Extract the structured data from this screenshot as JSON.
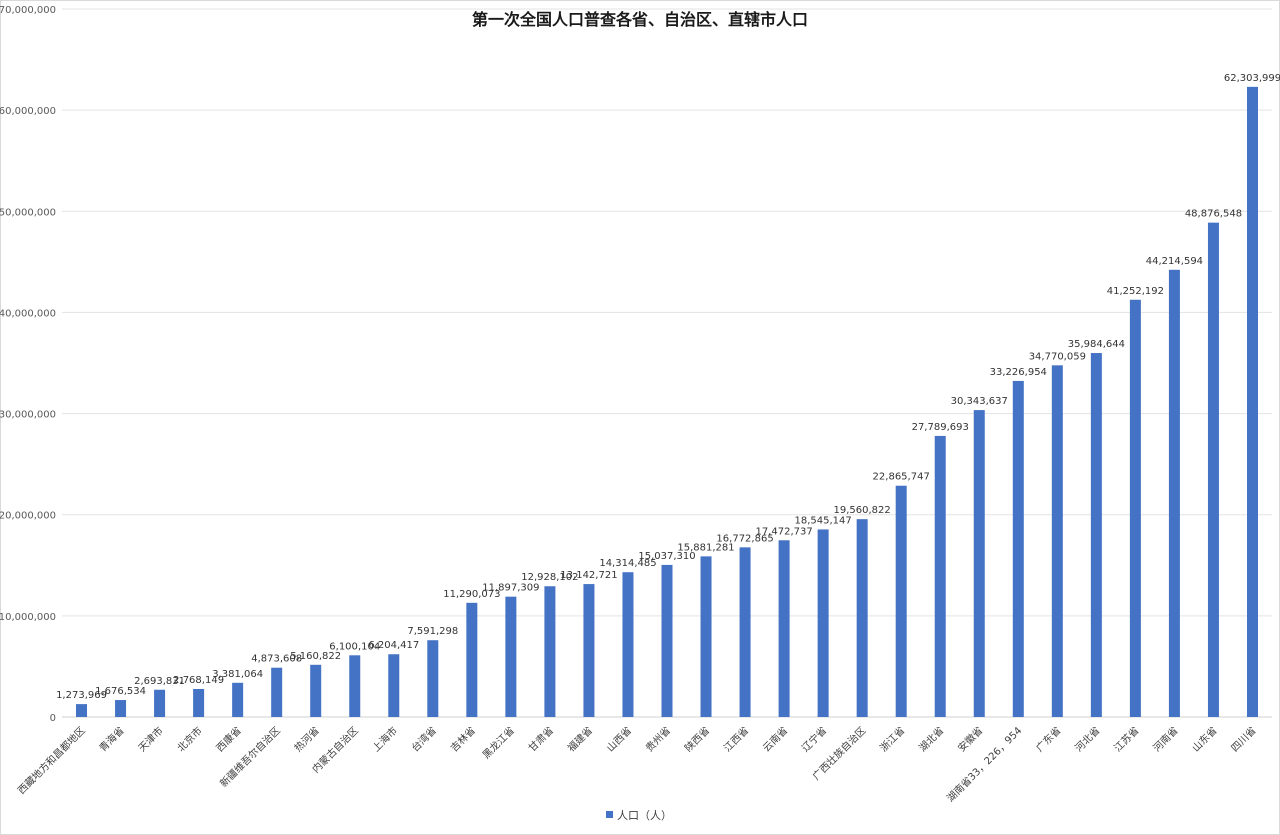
{
  "chart_data": {
    "type": "bar",
    "title": "第一次全国人口普查各省、自治区、直辖市人口",
    "xlabel": "",
    "ylabel": "",
    "ylim": [
      0,
      70000000
    ],
    "yticks": [
      "0",
      "10,000,000",
      "20,000,000",
      "30,000,000",
      "40,000,000",
      "50,000,000",
      "60,000,000",
      "70,000,000"
    ],
    "legend": {
      "position": "bottom",
      "label": "人口（人）"
    },
    "bar_color": "#4472c4",
    "categories": [
      "西藏地方和昌都地区",
      "青海省",
      "天津市",
      "北京市",
      "西康省",
      "新疆维吾尔自治区",
      "热河省",
      "内蒙古自治区",
      "上海市",
      "台湾省",
      "吉林省",
      "黑龙江省",
      "甘肃省",
      "福建省",
      "山西省",
      "贵州省",
      "陕西省",
      "江西省",
      "云南省",
      "辽宁省",
      "广西壮族自治区",
      "浙江省",
      "湖北省",
      "安徽省",
      "湖南省33，226，954",
      "广东省",
      "河北省",
      "江苏省",
      "河南省",
      "山东省",
      "四川省"
    ],
    "values": [
      1273969,
      1676534,
      2693831,
      2768149,
      3381064,
      4873608,
      5160822,
      6100104,
      6204417,
      7591298,
      11290073,
      11897309,
      12928102,
      13142721,
      14314485,
      15037310,
      15881281,
      16772865,
      17472737,
      18545147,
      19560822,
      22865747,
      27789693,
      30343637,
      33226954,
      34770059,
      35984644,
      41252192,
      44214594,
      48876548,
      62303999
    ],
    "data_labels": [
      "1,273,969",
      "1,676,534",
      "2,693,831",
      "2,768,149",
      "3,381,064",
      "4,873,608",
      "5,160,822",
      "6,100,104",
      "6,204,417",
      "7,591,298",
      "11,290,073",
      "11,897,309",
      "12,928,102",
      "13,142,721",
      "14,314,485",
      "15,037,310",
      "15,881,281",
      "16,772,865",
      "17,472,737",
      "18,545,147",
      "19,560,822",
      "22,865,747",
      "27,789,693",
      "30,343,637",
      "33,226,954",
      "34,770,059",
      "35,984,644",
      "41,252,192",
      "44,214,594",
      "48,876,548",
      "62,303,999"
    ]
  }
}
